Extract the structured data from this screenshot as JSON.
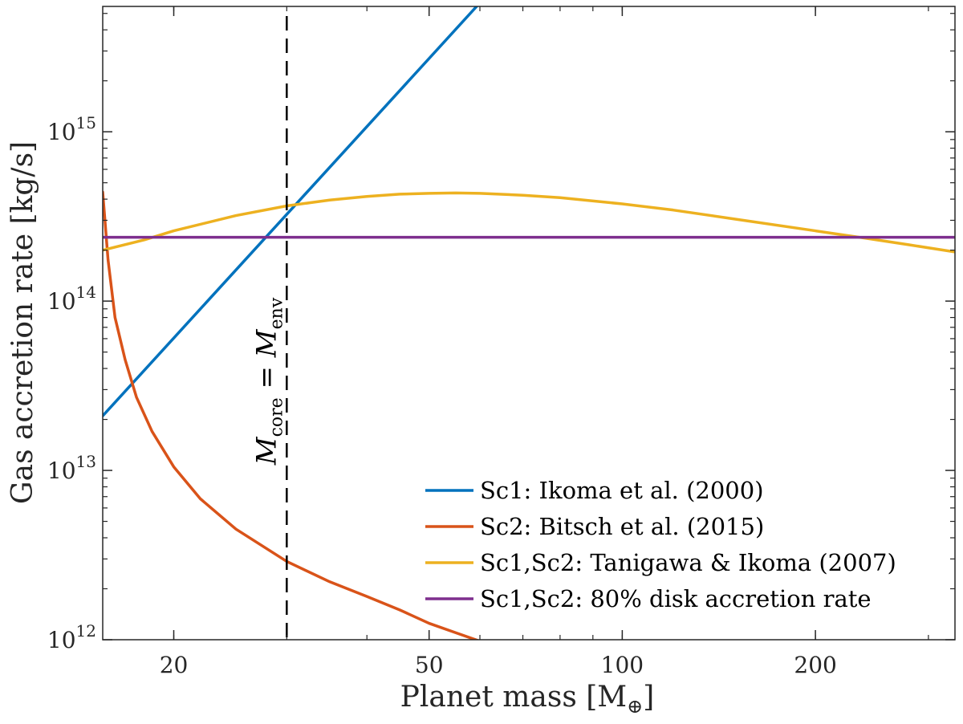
{
  "chart_data": {
    "type": "line",
    "xscale": "log",
    "yscale": "log",
    "xlabel": "Planet mass [M",
    "xlabel_unit_symbol": "⊕",
    "xlabel_close": "]",
    "ylabel": "Gas accretion rate [kg/s]",
    "xlim": [
      15.5,
      330
    ],
    "ylim": [
      1000000000000.0,
      5500000000000000.0
    ],
    "xticks": [
      20,
      50,
      100,
      200
    ],
    "xtick_labels": [
      "20",
      "50",
      "100",
      "200"
    ],
    "yticks": [
      1000000000000.0,
      10000000000000.0,
      100000000000000.0,
      1000000000000000.0
    ],
    "ytick_labels": [
      {
        "base": "10",
        "exp": "12"
      },
      {
        "base": "10",
        "exp": "13"
      },
      {
        "base": "10",
        "exp": "14"
      },
      {
        "base": "10",
        "exp": "15"
      }
    ],
    "vline": {
      "x": 30,
      "label_main_1": "M",
      "label_sub_1": "core",
      "label_eq": " = ",
      "label_main_2": "M",
      "label_sub_2": "env"
    },
    "series": [
      {
        "name": "Sc1: Ikoma et al. (2000)",
        "color": "#0072BD",
        "x": [
          15.5,
          59.3
        ],
        "y": [
          21000000000000.0,
          5500000000000000.0
        ]
      },
      {
        "name": "Sc2: Bitsch et al. (2015)",
        "color": "#D95319",
        "x": [
          15.5,
          15.8,
          16.2,
          16.8,
          17.5,
          18.5,
          20,
          22,
          25,
          30,
          35,
          40,
          45,
          50,
          55,
          60
        ],
        "y": [
          440000000000000.0,
          175000000000000.0,
          80000000000000.0,
          45000000000000.0,
          27000000000000.0,
          17000000000000.0,
          10500000000000.0,
          6800000000000.0,
          4500000000000.0,
          2900000000000.0,
          2200000000000.0,
          1800000000000.0,
          1500000000000.0,
          1250000000000.0,
          1100000000000.0,
          980000000000.0
        ]
      },
      {
        "name": "Sc1,Sc2: Tanigawa & Ikoma (2007)",
        "color": "#EDB120",
        "x": [
          15.5,
          18,
          20,
          25,
          30,
          35,
          40,
          45,
          50,
          55,
          60,
          70,
          80,
          100,
          120,
          150,
          200,
          240,
          280,
          330
        ],
        "y": [
          200000000000000.0,
          230000000000000.0,
          260000000000000.0,
          320000000000000.0,
          365000000000000.0,
          395000000000000.0,
          415000000000000.0,
          428000000000000.0,
          433000000000000.0,
          435000000000000.0,
          433000000000000.0,
          422000000000000.0,
          408000000000000.0,
          375000000000000.0,
          345000000000000.0,
          305000000000000.0,
          260000000000000.0,
          235000000000000.0,
          215000000000000.0,
          195000000000000.0
        ]
      },
      {
        "name": "Sc1,Sc2: 80% disk accretion rate",
        "color": "#7E2F8E",
        "x": [
          15.5,
          330
        ],
        "y": [
          238000000000000.0,
          238000000000000.0
        ]
      }
    ]
  }
}
